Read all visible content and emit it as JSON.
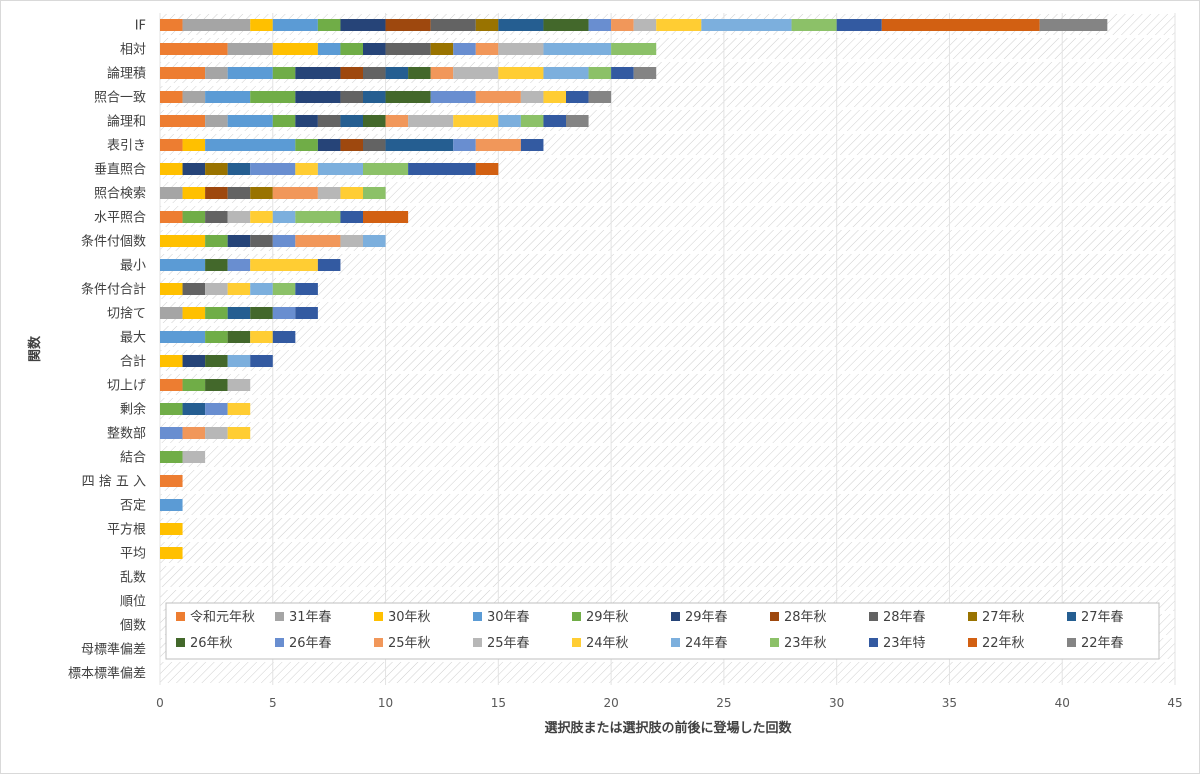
{
  "chart_data": {
    "type": "bar",
    "orientation": "horizontal",
    "stacked": true,
    "xlabel": "選択肢または選択肢の前後に登場した回数",
    "ylabel": "関数",
    "xlim": [
      0,
      45
    ],
    "xticks": [
      0,
      5,
      10,
      15,
      20,
      25,
      30,
      35,
      40,
      45
    ],
    "grid": true,
    "legend_position": "bottom-right-inside",
    "categories": [
      "IF",
      "相対",
      "論理積",
      "照合一致",
      "論理和",
      "表引き",
      "垂直照合",
      "照合検索",
      "水平照合",
      "条件付個数",
      "最小",
      "条件付合計",
      "切捨て",
      "最大",
      "合計",
      "切上げ",
      "剰余",
      "整数部",
      "結合",
      "四 捨 五 入",
      "否定",
      "平方根",
      "平均",
      "乱数",
      "順位",
      "個数",
      "母標準偏差",
      "標本標準偏差"
    ],
    "series": [
      {
        "name": "令和元年秋",
        "color": "#ED7D31",
        "values": [
          1,
          3,
          2,
          1,
          2,
          1,
          0,
          0,
          1,
          0,
          0,
          0,
          0,
          0,
          0,
          1,
          0,
          0,
          0,
          1,
          0,
          0,
          0,
          0,
          0,
          0,
          0,
          0
        ]
      },
      {
        "name": "31年春",
        "color": "#A5A5A5",
        "values": [
          3,
          2,
          1,
          1,
          1,
          0,
          0,
          1,
          0,
          0,
          0,
          0,
          1,
          0,
          0,
          0,
          0,
          0,
          0,
          0,
          0,
          0,
          0,
          0,
          0,
          0,
          0,
          0
        ]
      },
      {
        "name": "30年秋",
        "color": "#FFC000",
        "values": [
          1,
          2,
          0,
          0,
          0,
          1,
          1,
          1,
          0,
          2,
          0,
          1,
          1,
          0,
          1,
          0,
          0,
          0,
          0,
          0,
          0,
          1,
          1,
          0,
          0,
          0,
          0,
          0
        ]
      },
      {
        "name": "30年春",
        "color": "#5B9BD5",
        "values": [
          2,
          1,
          2,
          2,
          2,
          4,
          0,
          0,
          0,
          0,
          2,
          0,
          0,
          2,
          0,
          0,
          0,
          0,
          0,
          0,
          1,
          0,
          0,
          0,
          0,
          0,
          0,
          0
        ]
      },
      {
        "name": "29年秋",
        "color": "#70AD47",
        "values": [
          1,
          1,
          1,
          2,
          1,
          1,
          0,
          0,
          1,
          1,
          0,
          0,
          1,
          1,
          0,
          1,
          1,
          0,
          1,
          0,
          0,
          0,
          0,
          0,
          0,
          0,
          0,
          0
        ]
      },
      {
        "name": "29年春",
        "color": "#264478",
        "values": [
          2,
          1,
          2,
          2,
          1,
          1,
          1,
          0,
          0,
          1,
          0,
          0,
          0,
          0,
          1,
          0,
          0,
          0,
          0,
          0,
          0,
          0,
          0,
          0,
          0,
          0,
          0,
          0
        ]
      },
      {
        "name": "28年秋",
        "color": "#9E480E",
        "values": [
          2,
          0,
          1,
          0,
          0,
          1,
          0,
          1,
          0,
          0,
          0,
          0,
          0,
          0,
          0,
          0,
          0,
          0,
          0,
          0,
          0,
          0,
          0,
          0,
          0,
          0,
          0,
          0
        ]
      },
      {
        "name": "28年春",
        "color": "#636363",
        "values": [
          2,
          2,
          1,
          1,
          1,
          1,
          0,
          1,
          1,
          1,
          0,
          1,
          0,
          0,
          0,
          0,
          0,
          0,
          0,
          0,
          0,
          0,
          0,
          0,
          0,
          0,
          0,
          0
        ]
      },
      {
        "name": "27年秋",
        "color": "#997300",
        "values": [
          1,
          1,
          0,
          0,
          0,
          0,
          1,
          1,
          0,
          0,
          0,
          0,
          0,
          0,
          0,
          0,
          0,
          0,
          0,
          0,
          0,
          0,
          0,
          0,
          0,
          0,
          0,
          0
        ]
      },
      {
        "name": "27年春",
        "color": "#255E91",
        "values": [
          2,
          0,
          1,
          1,
          1,
          3,
          1,
          0,
          0,
          0,
          0,
          0,
          1,
          0,
          0,
          0,
          1,
          0,
          0,
          0,
          0,
          0,
          0,
          0,
          0,
          0,
          0,
          0
        ]
      },
      {
        "name": "26年秋",
        "color": "#43682B",
        "values": [
          2,
          0,
          1,
          2,
          1,
          0,
          0,
          0,
          0,
          0,
          1,
          0,
          1,
          1,
          1,
          1,
          0,
          0,
          0,
          0,
          0,
          0,
          0,
          0,
          0,
          0,
          0,
          0
        ]
      },
      {
        "name": "26年春",
        "color": "#698ED0",
        "values": [
          1,
          1,
          0,
          2,
          0,
          1,
          2,
          0,
          0,
          1,
          1,
          0,
          1,
          0,
          0,
          0,
          1,
          1,
          0,
          0,
          0,
          0,
          0,
          0,
          0,
          0,
          0,
          0
        ]
      },
      {
        "name": "25年秋",
        "color": "#F1975A",
        "values": [
          1,
          1,
          1,
          2,
          1,
          2,
          0,
          2,
          0,
          2,
          0,
          0,
          0,
          0,
          0,
          0,
          0,
          1,
          0,
          0,
          0,
          0,
          0,
          0,
          0,
          0,
          0,
          0
        ]
      },
      {
        "name": "25年春",
        "color": "#B7B7B7",
        "values": [
          1,
          2,
          2,
          1,
          2,
          0,
          0,
          1,
          1,
          1,
          0,
          1,
          0,
          0,
          0,
          1,
          0,
          1,
          1,
          0,
          0,
          0,
          0,
          0,
          0,
          0,
          0,
          0
        ]
      },
      {
        "name": "24年秋",
        "color": "#FFCD33",
        "values": [
          2,
          0,
          2,
          1,
          2,
          0,
          1,
          1,
          1,
          0,
          3,
          1,
          0,
          1,
          0,
          0,
          1,
          1,
          0,
          0,
          0,
          0,
          0,
          0,
          0,
          0,
          0,
          0
        ]
      },
      {
        "name": "24年春",
        "color": "#7CAFDD",
        "values": [
          4,
          3,
          2,
          0,
          1,
          0,
          2,
          0,
          1,
          1,
          0,
          1,
          0,
          0,
          1,
          0,
          0,
          0,
          0,
          0,
          0,
          0,
          0,
          0,
          0,
          0,
          0,
          0
        ]
      },
      {
        "name": "23年秋",
        "color": "#8CC168",
        "values": [
          2,
          2,
          1,
          0,
          1,
          0,
          2,
          1,
          2,
          0,
          0,
          1,
          0,
          0,
          0,
          0,
          0,
          0,
          0,
          0,
          0,
          0,
          0,
          0,
          0,
          0,
          0,
          0
        ]
      },
      {
        "name": "23年特",
        "color": "#335AA1",
        "values": [
          2,
          0,
          1,
          1,
          1,
          1,
          3,
          0,
          1,
          0,
          1,
          1,
          1,
          1,
          1,
          0,
          0,
          0,
          0,
          0,
          0,
          0,
          0,
          0,
          0,
          0,
          0,
          0
        ]
      },
      {
        "name": "22年秋",
        "color": "#D26012",
        "values": [
          7,
          0,
          0,
          0,
          0,
          0,
          1,
          0,
          2,
          0,
          0,
          0,
          0,
          0,
          0,
          0,
          0,
          0,
          0,
          0,
          0,
          0,
          0,
          0,
          0,
          0,
          0,
          0
        ]
      },
      {
        "name": "22年春",
        "color": "#848484",
        "values": [
          3,
          0,
          1,
          1,
          1,
          0,
          0,
          0,
          0,
          0,
          0,
          0,
          0,
          0,
          0,
          0,
          0,
          0,
          0,
          0,
          0,
          0,
          0,
          0,
          0,
          0,
          0,
          0
        ]
      }
    ]
  }
}
